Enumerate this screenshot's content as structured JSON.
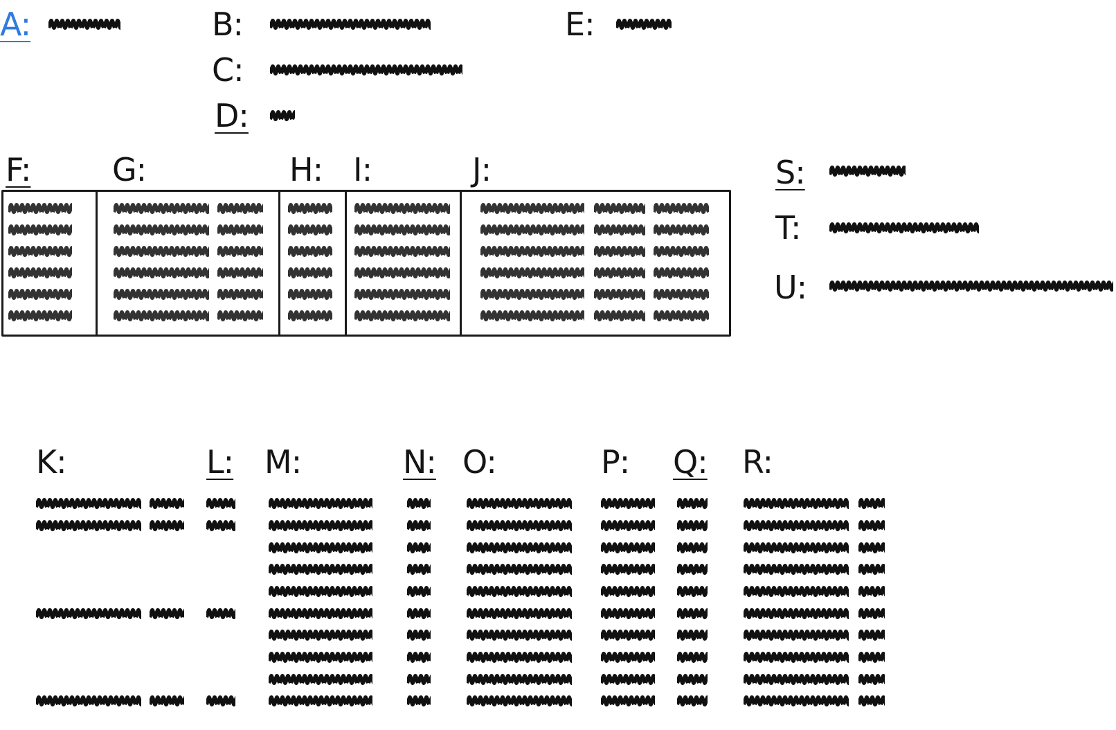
{
  "labels": {
    "A": "A:",
    "B": "B:",
    "C": "C:",
    "D": "D:",
    "E": "E:",
    "F": "F:",
    "G": "G:",
    "H": "H:",
    "I": "I:",
    "J": "J:",
    "K": "K:",
    "L": "L:",
    "M": "M:",
    "N": "N:",
    "O": "O:",
    "P": "P:",
    "Q": "Q:",
    "R": "R:",
    "S": "S:",
    "T": "T:",
    "U": "U:"
  },
  "colors": {
    "accent": "#2f7be0",
    "ink": "#111111",
    "gray_ink": "#333333"
  }
}
